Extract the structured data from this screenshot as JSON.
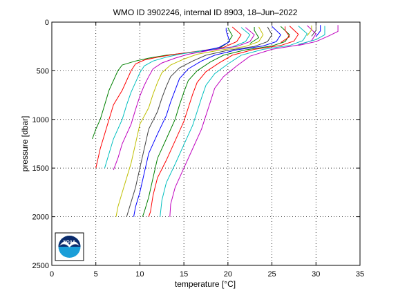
{
  "chart_data": {
    "type": "line",
    "title": "WMO ID 3902246, internal ID 8903, 18–Jun–2022",
    "xlabel": "temperature [°C]",
    "ylabel": "pressure [dbar]",
    "xlim": [
      0,
      35
    ],
    "ylim": [
      0,
      2500
    ],
    "y_reversed": true,
    "grid": "dotted",
    "legend": "none",
    "xticks": [
      0,
      5,
      10,
      15,
      20,
      25,
      30,
      35
    ],
    "xtick_labels": [
      "0",
      "5",
      "10",
      "15",
      "20",
      "25",
      "30",
      "35"
    ],
    "yticks": [
      0,
      500,
      1000,
      1500,
      2000,
      2500
    ],
    "ytick_labels": [
      "0",
      "500",
      "1000",
      "1500",
      "2000",
      "2500"
    ],
    "logo": "NOAA",
    "logo_label": "NOAA",
    "series": [
      {
        "color": "#008000",
        "values": [
          [
            20.0,
            60
          ],
          [
            20.5,
            140
          ],
          [
            20.0,
            210
          ],
          [
            19.0,
            270
          ],
          [
            16.0,
            310
          ],
          [
            13.0,
            340
          ],
          [
            11.0,
            370
          ],
          [
            9.5,
            400
          ],
          [
            8.0,
            440
          ],
          [
            7.5,
            500
          ],
          [
            7.0,
            600
          ],
          [
            6.5,
            700
          ],
          [
            6.0,
            850
          ],
          [
            5.5,
            1000
          ],
          [
            5.0,
            1100
          ],
          [
            4.6,
            1200
          ]
        ]
      },
      {
        "color": "#ff0000",
        "values": [
          [
            20.5,
            50
          ],
          [
            21.5,
            130
          ],
          [
            21.0,
            200
          ],
          [
            19.5,
            260
          ],
          [
            16.5,
            300
          ],
          [
            14.0,
            330
          ],
          [
            12.0,
            360
          ],
          [
            10.5,
            390
          ],
          [
            9.5,
            430
          ],
          [
            9.0,
            500
          ],
          [
            8.5,
            600
          ],
          [
            8.0,
            700
          ],
          [
            7.0,
            850
          ],
          [
            6.5,
            1000
          ],
          [
            6.0,
            1150
          ],
          [
            5.5,
            1300
          ],
          [
            5.0,
            1500
          ]
        ]
      },
      {
        "color": "#00bfbf",
        "values": [
          [
            21.5,
            55
          ],
          [
            22.5,
            130
          ],
          [
            22.0,
            200
          ],
          [
            20.5,
            255
          ],
          [
            17.0,
            295
          ],
          [
            14.5,
            330
          ],
          [
            13.0,
            360
          ],
          [
            11.5,
            400
          ],
          [
            10.5,
            450
          ],
          [
            10.0,
            520
          ],
          [
            9.5,
            620
          ],
          [
            9.0,
            720
          ],
          [
            8.5,
            850
          ],
          [
            8.0,
            1000
          ],
          [
            7.0,
            1200
          ],
          [
            6.5,
            1350
          ],
          [
            6.0,
            1500
          ]
        ]
      },
      {
        "color": "#bf00bf",
        "values": [
          [
            22.0,
            55
          ],
          [
            23.0,
            130
          ],
          [
            22.5,
            200
          ],
          [
            21.0,
            250
          ],
          [
            18.0,
            290
          ],
          [
            15.5,
            330
          ],
          [
            14.0,
            370
          ],
          [
            12.5,
            420
          ],
          [
            11.5,
            480
          ],
          [
            11.0,
            560
          ],
          [
            10.5,
            650
          ],
          [
            10.0,
            760
          ],
          [
            9.5,
            900
          ],
          [
            9.0,
            1050
          ],
          [
            8.0,
            1250
          ],
          [
            7.5,
            1400
          ],
          [
            7.0,
            1520
          ]
        ]
      },
      {
        "color": "#bfbf00",
        "values": [
          [
            23.5,
            50
          ],
          [
            24.0,
            130
          ],
          [
            23.5,
            200
          ],
          [
            22.0,
            250
          ],
          [
            19.0,
            290
          ],
          [
            16.5,
            330
          ],
          [
            15.0,
            380
          ],
          [
            13.5,
            440
          ],
          [
            12.5,
            520
          ],
          [
            12.0,
            620
          ],
          [
            11.5,
            740
          ],
          [
            11.0,
            880
          ],
          [
            10.0,
            1050
          ],
          [
            9.5,
            1250
          ],
          [
            9.0,
            1450
          ],
          [
            8.5,
            1600
          ],
          [
            8.0,
            1750
          ],
          [
            7.5,
            1900
          ],
          [
            7.3,
            2000
          ]
        ]
      },
      {
        "color": "#404040",
        "values": [
          [
            24.5,
            50
          ],
          [
            25.0,
            130
          ],
          [
            24.5,
            200
          ],
          [
            23.0,
            250
          ],
          [
            20.0,
            290
          ],
          [
            17.5,
            340
          ],
          [
            16.0,
            400
          ],
          [
            14.5,
            470
          ],
          [
            13.5,
            560
          ],
          [
            13.0,
            660
          ],
          [
            12.5,
            780
          ],
          [
            12.0,
            920
          ],
          [
            11.0,
            1100
          ],
          [
            10.5,
            1300
          ],
          [
            10.0,
            1500
          ],
          [
            9.5,
            1700
          ],
          [
            9.0,
            1850
          ],
          [
            8.5,
            2000
          ]
        ]
      },
      {
        "color": "#0000ff",
        "values": [
          [
            25.0,
            45
          ],
          [
            26.0,
            130
          ],
          [
            25.5,
            200
          ],
          [
            24.0,
            245
          ],
          [
            21.0,
            285
          ],
          [
            18.5,
            340
          ],
          [
            17.0,
            400
          ],
          [
            15.5,
            480
          ],
          [
            14.5,
            580
          ],
          [
            14.0,
            700
          ],
          [
            13.5,
            820
          ],
          [
            13.0,
            960
          ],
          [
            12.0,
            1150
          ],
          [
            11.0,
            1350
          ],
          [
            10.5,
            1550
          ],
          [
            10.0,
            1750
          ],
          [
            9.5,
            1900
          ],
          [
            9.3,
            2000
          ]
        ]
      },
      {
        "color": "#008000",
        "values": [
          [
            26.0,
            45
          ],
          [
            27.0,
            130
          ],
          [
            26.5,
            200
          ],
          [
            25.0,
            245
          ],
          [
            22.0,
            285
          ],
          [
            19.5,
            340
          ],
          [
            18.0,
            410
          ],
          [
            16.5,
            500
          ],
          [
            15.5,
            600
          ],
          [
            15.0,
            720
          ],
          [
            14.5,
            850
          ],
          [
            14.0,
            1000
          ],
          [
            13.0,
            1200
          ],
          [
            12.0,
            1400
          ],
          [
            11.5,
            1600
          ],
          [
            11.0,
            1800
          ],
          [
            10.5,
            1950
          ],
          [
            10.3,
            2000
          ]
        ]
      },
      {
        "color": "#ff0000",
        "values": [
          [
            27.0,
            40
          ],
          [
            28.0,
            125
          ],
          [
            27.5,
            195
          ],
          [
            26.0,
            240
          ],
          [
            23.0,
            280
          ],
          [
            20.5,
            340
          ],
          [
            19.0,
            420
          ],
          [
            17.5,
            510
          ],
          [
            16.5,
            620
          ],
          [
            16.0,
            740
          ],
          [
            15.5,
            880
          ],
          [
            15.0,
            1020
          ],
          [
            14.0,
            1220
          ],
          [
            13.0,
            1420
          ],
          [
            12.0,
            1600
          ],
          [
            11.5,
            1780
          ],
          [
            11.2,
            1950
          ],
          [
            11.0,
            2000
          ]
        ]
      },
      {
        "color": "#00bfbf",
        "values": [
          [
            28.0,
            40
          ],
          [
            29.0,
            120
          ],
          [
            28.5,
            190
          ],
          [
            27.0,
            240
          ],
          [
            24.0,
            280
          ],
          [
            21.5,
            340
          ],
          [
            20.0,
            430
          ],
          [
            18.5,
            530
          ],
          [
            17.5,
            650
          ],
          [
            17.0,
            780
          ],
          [
            16.5,
            920
          ],
          [
            16.0,
            1060
          ],
          [
            15.0,
            1260
          ],
          [
            14.0,
            1460
          ],
          [
            13.0,
            1650
          ],
          [
            12.5,
            1830
          ],
          [
            12.3,
            2000
          ]
        ]
      },
      {
        "color": "#bf00bf",
        "values": [
          [
            29.0,
            35
          ],
          [
            30.0,
            120
          ],
          [
            29.5,
            190
          ],
          [
            28.0,
            235
          ],
          [
            25.0,
            280
          ],
          [
            22.5,
            350
          ],
          [
            21.0,
            450
          ],
          [
            19.5,
            560
          ],
          [
            18.5,
            680
          ],
          [
            18.0,
            820
          ],
          [
            17.5,
            960
          ],
          [
            17.0,
            1100
          ],
          [
            16.0,
            1300
          ],
          [
            15.0,
            1500
          ],
          [
            14.0,
            1700
          ],
          [
            13.5,
            1870
          ],
          [
            13.4,
            2000
          ]
        ]
      },
      {
        "color": "#0000ff",
        "values": [
          [
            19.8,
            60
          ],
          [
            19.8,
            90
          ],
          [
            20.2,
            200
          ],
          [
            19.0,
            260
          ],
          [
            17.0,
            300
          ]
        ]
      },
      {
        "color": "#008000",
        "values": [
          [
            23.0,
            50
          ],
          [
            23.0,
            85
          ],
          [
            23.5,
            160
          ],
          [
            22.5,
            220
          ]
        ]
      },
      {
        "color": "#ff0000",
        "values": [
          [
            26.5,
            45
          ],
          [
            26.5,
            85
          ],
          [
            27.0,
            150
          ],
          [
            26.0,
            210
          ]
        ]
      },
      {
        "color": "#00bfbf",
        "values": [
          [
            31.0,
            40
          ],
          [
            31.0,
            90
          ],
          [
            31.0,
            130
          ],
          [
            30.0,
            180
          ],
          [
            28.0,
            230
          ]
        ]
      },
      {
        "color": "#bf00bf",
        "values": [
          [
            32.5,
            30
          ],
          [
            32.5,
            95
          ],
          [
            31.5,
            140
          ],
          [
            30.0,
            200
          ],
          [
            28.0,
            240
          ]
        ]
      },
      {
        "color": "#bfbf00",
        "values": [
          [
            29.5,
            35
          ],
          [
            29.5,
            80
          ],
          [
            29.0,
            140
          ]
        ]
      },
      {
        "color": "#0000ff",
        "values": [
          [
            30.5,
            30
          ],
          [
            30.5,
            90
          ],
          [
            30.0,
            150
          ]
        ]
      },
      {
        "color": "#404040",
        "values": [
          [
            30.0,
            40
          ],
          [
            30.0,
            85
          ],
          [
            29.5,
            145
          ]
        ]
      }
    ]
  }
}
